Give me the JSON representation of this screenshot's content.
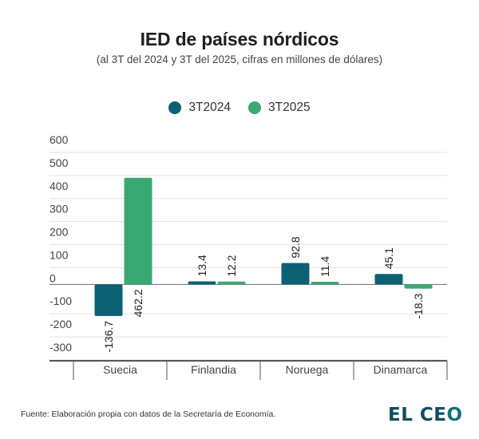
{
  "header": {
    "title": "IED de países nórdicos",
    "subtitle": "(al 3T del 2024 y 3T del 2025, cifras en millones de dólares)"
  },
  "legend": [
    {
      "label": "3T2024",
      "color": "#0b6172"
    },
    {
      "label": "3T2025",
      "color": "#3aa873"
    }
  ],
  "chart_data": {
    "type": "bar",
    "title": "IED de países nórdicos",
    "subtitle": "(al 3T del 2024 y 3T del 2025, cifras en millones de dólares)",
    "xlabel": "",
    "ylabel": "",
    "categories": [
      "Suecia",
      "Finlandia",
      "Noruega",
      "Dinamarca"
    ],
    "series": [
      {
        "name": "3T2024",
        "color": "#0b6172",
        "values": [
          -136.7,
          13.4,
          92.8,
          45.1
        ],
        "labels": [
          "-136.7",
          "13.4",
          "92.8",
          "45.1"
        ]
      },
      {
        "name": "3T2025",
        "color": "#3aa873",
        "values": [
          462.2,
          12.2,
          11.4,
          -18.3
        ],
        "labels": [
          "462.2",
          "12.2",
          "11.4",
          "-18.3"
        ]
      }
    ],
    "ylim": [
      -300,
      600
    ],
    "yticks": [
      600,
      500,
      400,
      300,
      200,
      100,
      0,
      -100,
      -200,
      -300
    ],
    "ytick_labels": [
      "600",
      "500",
      "400",
      "300",
      "200",
      "100",
      "0",
      "-100",
      "-200",
      "-300"
    ],
    "grid": true,
    "legend_position": "top-center",
    "data_labels": "rotated-vertical"
  },
  "footer": {
    "source": "Fuente: Elaboración propia con datos de la Secretaría de Economía.",
    "logo_main": "EL CE",
    "logo_o": "O"
  }
}
